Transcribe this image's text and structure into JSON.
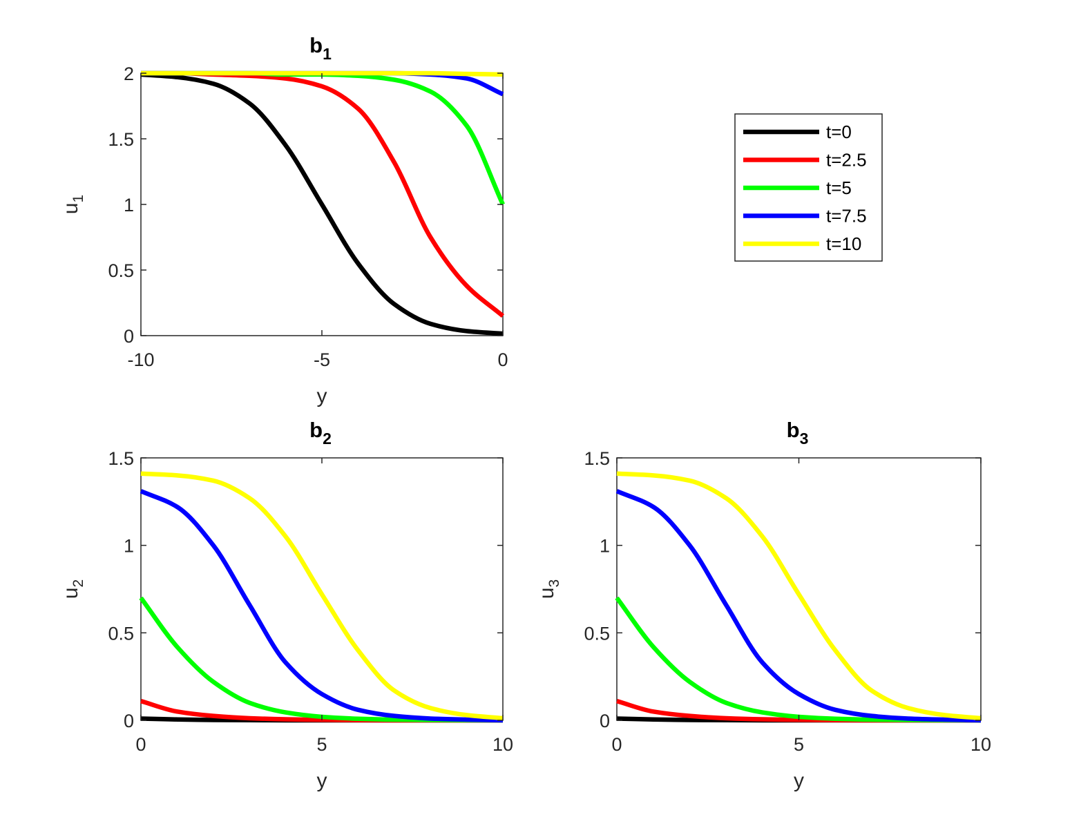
{
  "chart_data": [
    {
      "type": "line",
      "title": "b",
      "title_sub": "1",
      "xlabel": "y",
      "ylabel": "u",
      "ylabel_sub": "1",
      "xlim": [
        -10,
        0
      ],
      "ylim": [
        0,
        2
      ],
      "xticks": [
        "-10",
        "-5",
        "0"
      ],
      "yticks": [
        "0",
        "0.5",
        "1",
        "1.5",
        "2"
      ],
      "grid": false,
      "series": [
        {
          "name": "t=0",
          "color": "#000000",
          "x": [
            -10,
            -9,
            -8,
            -7,
            -6,
            -5,
            -4,
            -3,
            -2,
            -1,
            0
          ],
          "y": [
            1.99,
            1.97,
            1.92,
            1.77,
            1.45,
            1.0,
            0.55,
            0.24,
            0.09,
            0.035,
            0.015
          ]
        },
        {
          "name": "t=2.5",
          "color": "#ff0000",
          "x": [
            -10,
            -9,
            -8,
            -7,
            -6,
            -5,
            -4,
            -3,
            -2,
            -1,
            0
          ],
          "y": [
            2.0,
            2.0,
            1.99,
            1.98,
            1.96,
            1.9,
            1.73,
            1.32,
            0.75,
            0.38,
            0.15
          ]
        },
        {
          "name": "t=5",
          "color": "#00ff00",
          "x": [
            -10,
            -9,
            -8,
            -7,
            -6,
            -5,
            -4,
            -3,
            -2,
            -1,
            0
          ],
          "y": [
            2.0,
            2.0,
            2.0,
            2.0,
            1.99,
            1.99,
            1.98,
            1.95,
            1.86,
            1.6,
            1.0
          ]
        },
        {
          "name": "t=7.5",
          "color": "#0000ff",
          "x": [
            -10,
            -9,
            -8,
            -7,
            -6,
            -5,
            -4,
            -3,
            -2,
            -1,
            0
          ],
          "y": [
            2.0,
            2.0,
            2.0,
            2.0,
            2.0,
            2.0,
            2.0,
            2.0,
            1.99,
            1.96,
            1.84
          ]
        },
        {
          "name": "t=10",
          "color": "#ffff00",
          "x": [
            -10,
            -9,
            -8,
            -7,
            -6,
            -5,
            -4,
            -3,
            -2,
            -1,
            0
          ],
          "y": [
            2.0,
            2.0,
            2.0,
            2.0,
            2.0,
            2.0,
            2.0,
            2.0,
            2.0,
            1.995,
            1.99
          ]
        }
      ]
    },
    {
      "type": "line",
      "title": "b",
      "title_sub": "2",
      "xlabel": "y",
      "ylabel": "u",
      "ylabel_sub": "2",
      "xlim": [
        0,
        10
      ],
      "ylim": [
        0,
        1.5
      ],
      "xticks": [
        "0",
        "5",
        "10"
      ],
      "yticks": [
        "0",
        "0.5",
        "1",
        "1.5"
      ],
      "grid": false,
      "series": [
        {
          "name": "t=0",
          "color": "#000000",
          "x": [
            0,
            1,
            2,
            3,
            4,
            5,
            6,
            7,
            8,
            9,
            10
          ],
          "y": [
            0.01,
            0.005,
            0.002,
            0.001,
            0.0,
            0.0,
            0.0,
            0.0,
            0.0,
            0.0,
            0.0
          ]
        },
        {
          "name": "t=2.5",
          "color": "#ff0000",
          "x": [
            0,
            1,
            2,
            3,
            4,
            5,
            6,
            7,
            8,
            9,
            10
          ],
          "y": [
            0.11,
            0.05,
            0.025,
            0.012,
            0.006,
            0.003,
            0.001,
            0.0,
            0.0,
            0.0,
            0.0
          ]
        },
        {
          "name": "t=5",
          "color": "#00ff00",
          "x": [
            0,
            1,
            2,
            3,
            4,
            5,
            6,
            7,
            8,
            9,
            10
          ],
          "y": [
            0.7,
            0.42,
            0.22,
            0.1,
            0.045,
            0.02,
            0.009,
            0.004,
            0.002,
            0.001,
            0.0
          ]
        },
        {
          "name": "t=7.5",
          "color": "#0000ff",
          "x": [
            0,
            1,
            2,
            3,
            4,
            5,
            6,
            7,
            8,
            9,
            10
          ],
          "y": [
            1.31,
            1.22,
            1.0,
            0.66,
            0.33,
            0.15,
            0.06,
            0.025,
            0.01,
            0.004,
            0.0
          ]
        },
        {
          "name": "t=10",
          "color": "#ffff00",
          "x": [
            0,
            1,
            2,
            3,
            4,
            5,
            6,
            7,
            8,
            9,
            10
          ],
          "y": [
            1.41,
            1.4,
            1.37,
            1.27,
            1.05,
            0.72,
            0.4,
            0.17,
            0.07,
            0.03,
            0.012
          ]
        }
      ]
    },
    {
      "type": "line",
      "title": "b",
      "title_sub": "3",
      "xlabel": "y",
      "ylabel": "u",
      "ylabel_sub": "3",
      "xlim": [
        0,
        10
      ],
      "ylim": [
        0,
        1.5
      ],
      "xticks": [
        "0",
        "5",
        "10"
      ],
      "yticks": [
        "0",
        "0.5",
        "1",
        "1.5"
      ],
      "grid": false,
      "series": [
        {
          "name": "t=0",
          "color": "#000000",
          "x": [
            0,
            1,
            2,
            3,
            4,
            5,
            6,
            7,
            8,
            9,
            10
          ],
          "y": [
            0.01,
            0.005,
            0.002,
            0.001,
            0.0,
            0.0,
            0.0,
            0.0,
            0.0,
            0.0,
            0.0
          ]
        },
        {
          "name": "t=2.5",
          "color": "#ff0000",
          "x": [
            0,
            1,
            2,
            3,
            4,
            5,
            6,
            7,
            8,
            9,
            10
          ],
          "y": [
            0.11,
            0.05,
            0.025,
            0.012,
            0.006,
            0.003,
            0.001,
            0.0,
            0.0,
            0.0,
            0.0
          ]
        },
        {
          "name": "t=5",
          "color": "#00ff00",
          "x": [
            0,
            1,
            2,
            3,
            4,
            5,
            6,
            7,
            8,
            9,
            10
          ],
          "y": [
            0.7,
            0.42,
            0.22,
            0.1,
            0.045,
            0.02,
            0.009,
            0.004,
            0.002,
            0.001,
            0.0
          ]
        },
        {
          "name": "t=7.5",
          "color": "#0000ff",
          "x": [
            0,
            1,
            2,
            3,
            4,
            5,
            6,
            7,
            8,
            9,
            10
          ],
          "y": [
            1.31,
            1.22,
            1.0,
            0.66,
            0.33,
            0.15,
            0.06,
            0.025,
            0.01,
            0.004,
            0.0
          ]
        },
        {
          "name": "t=10",
          "color": "#ffff00",
          "x": [
            0,
            1,
            2,
            3,
            4,
            5,
            6,
            7,
            8,
            9,
            10
          ],
          "y": [
            1.41,
            1.4,
            1.37,
            1.27,
            1.05,
            0.72,
            0.4,
            0.17,
            0.07,
            0.03,
            0.012
          ]
        }
      ]
    }
  ],
  "legend": {
    "placement": "right of top panel",
    "entries": [
      {
        "label": "t=0",
        "color": "#000000"
      },
      {
        "label": "t=2.5",
        "color": "#ff0000"
      },
      {
        "label": "t=5",
        "color": "#00ff00"
      },
      {
        "label": "t=7.5",
        "color": "#0000ff"
      },
      {
        "label": "t=10",
        "color": "#ffff00"
      }
    ]
  }
}
